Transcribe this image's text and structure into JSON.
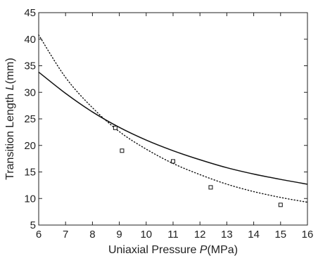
{
  "chart_data": {
    "type": "scatter",
    "title": "",
    "xlabel": "Uniaxial Pressure P(MPa)",
    "xlabel_parts": {
      "pre": "Uniaxial Pressure ",
      "var": "P",
      "post": "(MPa)"
    },
    "ylabel": "Transition Length L(mm)",
    "ylabel_parts": {
      "pre": "Transition Length ",
      "var": "L",
      "post": "(mm)"
    },
    "xlim": [
      6,
      16
    ],
    "ylim": [
      5,
      45
    ],
    "xticks": [
      6,
      7,
      8,
      9,
      10,
      11,
      12,
      13,
      14,
      15,
      16
    ],
    "yticks": [
      5,
      10,
      15,
      20,
      25,
      30,
      35,
      40,
      45
    ],
    "grid": false,
    "legend": "none",
    "series": [
      {
        "style": "solid-line",
        "x": [
          6,
          7,
          8,
          9,
          10,
          11,
          12,
          13,
          14,
          15,
          16
        ],
        "y": [
          33.8,
          29.8,
          26.3,
          23.4,
          21.0,
          19.0,
          17.3,
          15.8,
          14.6,
          13.6,
          12.7
        ]
      },
      {
        "style": "dotted-line",
        "x": [
          6,
          7,
          8,
          9,
          10,
          11,
          12,
          13,
          14,
          15,
          16
        ],
        "y": [
          40.8,
          32.8,
          27.1,
          22.6,
          19.3,
          16.6,
          14.5,
          12.7,
          11.3,
          10.2,
          9.3
        ]
      },
      {
        "style": "square-markers",
        "x": [
          8.85,
          9.1,
          11.0,
          12.4,
          15.0
        ],
        "y": [
          23.3,
          19.0,
          17.0,
          12.1,
          8.8
        ]
      }
    ],
    "colors": {
      "line": "#111111",
      "axis": "#222222"
    }
  }
}
